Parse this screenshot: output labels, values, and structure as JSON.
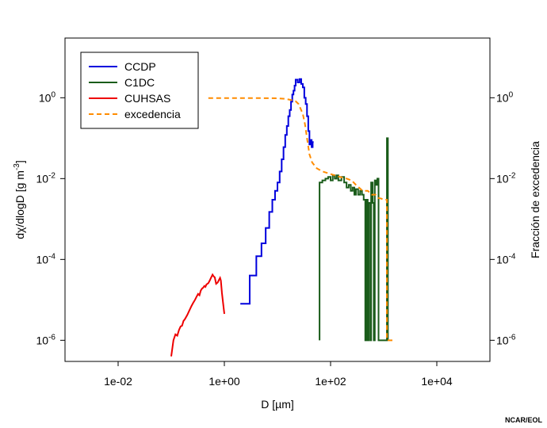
{
  "chart_data": {
    "type": "line",
    "x_scale": "log",
    "y_scale": "log",
    "xlim": [
      0.001,
      100000
    ],
    "ylim": [
      3e-07,
      30
    ],
    "y2lim": [
      3e-07,
      30
    ],
    "xlabel": "D [µm]",
    "ylabel_parts": {
      "main": "dχ/dlogD [g m",
      "sup": "-3",
      "close": "]"
    },
    "ylabel2": "Fracción de excedencia",
    "x_ticks": [
      {
        "v": 0.01,
        "label": "1e-02"
      },
      {
        "v": 1,
        "label": "1e+00"
      },
      {
        "v": 100,
        "label": "1e+02"
      },
      {
        "v": 10000,
        "label": "1e+04"
      }
    ],
    "y_ticks": [
      {
        "v": 1,
        "base": "10",
        "exp": "0"
      },
      {
        "v": 0.01,
        "base": "10",
        "exp": "-2"
      },
      {
        "v": 0.0001,
        "base": "10",
        "exp": "-4"
      },
      {
        "v": 1e-06,
        "base": "10",
        "exp": "-6"
      }
    ],
    "legend": {
      "position": "top-left"
    },
    "series": [
      {
        "name": "CCDP",
        "color": "#0000dd",
        "style": "step",
        "points": [
          [
            2,
            8e-06
          ],
          [
            3,
            8e-06
          ],
          [
            3,
            4e-05
          ],
          [
            4,
            4e-05
          ],
          [
            4,
            0.00012
          ],
          [
            5,
            0.00012
          ],
          [
            5,
            0.00025
          ],
          [
            6,
            0.00025
          ],
          [
            6,
            0.0006
          ],
          [
            7,
            0.0006
          ],
          [
            7,
            0.0015
          ],
          [
            8,
            0.0015
          ],
          [
            8,
            0.003
          ],
          [
            9,
            0.003
          ],
          [
            9,
            0.005
          ],
          [
            10,
            0.005
          ],
          [
            10,
            0.008
          ],
          [
            11,
            0.008
          ],
          [
            11,
            0.015
          ],
          [
            12,
            0.015
          ],
          [
            12,
            0.03
          ],
          [
            13,
            0.03
          ],
          [
            13,
            0.06
          ],
          [
            14,
            0.06
          ],
          [
            14,
            0.12
          ],
          [
            15,
            0.12
          ],
          [
            15,
            0.2
          ],
          [
            16,
            0.2
          ],
          [
            16,
            0.35
          ],
          [
            17,
            0.35
          ],
          [
            17,
            0.5
          ],
          [
            18,
            0.5
          ],
          [
            18,
            0.8
          ],
          [
            19,
            0.8
          ],
          [
            19,
            1.2
          ],
          [
            20,
            1.2
          ],
          [
            20,
            1.5
          ],
          [
            21,
            1.5
          ],
          [
            21,
            2
          ],
          [
            22,
            2
          ],
          [
            22,
            2.8
          ],
          [
            24,
            2.8
          ],
          [
            24,
            2.4
          ],
          [
            26,
            2.4
          ],
          [
            26,
            2.9
          ],
          [
            28,
            2.9
          ],
          [
            28,
            2.2
          ],
          [
            30,
            2.2
          ],
          [
            30,
            1.8
          ],
          [
            32,
            1.8
          ],
          [
            32,
            1.0
          ],
          [
            34,
            1.0
          ],
          [
            34,
            0.7
          ],
          [
            36,
            0.7
          ],
          [
            36,
            0.35
          ],
          [
            38,
            0.35
          ],
          [
            38,
            0.15
          ],
          [
            40,
            0.15
          ],
          [
            40,
            0.07
          ],
          [
            42,
            0.07
          ],
          [
            42,
            0.09
          ],
          [
            44,
            0.09
          ],
          [
            44,
            0.06
          ],
          [
            46,
            0.06
          ],
          [
            46,
            0.08
          ],
          [
            48,
            0.08
          ]
        ]
      },
      {
        "name": "C1DC",
        "color": "#1a5c1a",
        "style": "step",
        "points": [
          [
            62,
            1e-06
          ],
          [
            62,
            0.008
          ],
          [
            70,
            0.008
          ],
          [
            70,
            0.009
          ],
          [
            80,
            0.009
          ],
          [
            80,
            0.01
          ],
          [
            90,
            0.01
          ],
          [
            90,
            0.011
          ],
          [
            100,
            0.011
          ],
          [
            100,
            0.009
          ],
          [
            110,
            0.009
          ],
          [
            110,
            0.012
          ],
          [
            120,
            0.012
          ],
          [
            120,
            0.01
          ],
          [
            130,
            0.01
          ],
          [
            130,
            0.012
          ],
          [
            140,
            0.012
          ],
          [
            140,
            0.009
          ],
          [
            160,
            0.009
          ],
          [
            160,
            0.011
          ],
          [
            180,
            0.011
          ],
          [
            180,
            0.008
          ],
          [
            200,
            0.008
          ],
          [
            200,
            0.006
          ],
          [
            220,
            0.006
          ],
          [
            220,
            0.007
          ],
          [
            240,
            0.007
          ],
          [
            240,
            0.005
          ],
          [
            260,
            0.005
          ],
          [
            260,
            0.006
          ],
          [
            280,
            0.006
          ],
          [
            280,
            0.004
          ],
          [
            300,
            0.004
          ],
          [
            300,
            0.0055
          ],
          [
            330,
            0.0055
          ],
          [
            330,
            0.004
          ],
          [
            360,
            0.004
          ],
          [
            360,
            0.005
          ],
          [
            390,
            0.005
          ],
          [
            390,
            0.004
          ],
          [
            420,
            0.004
          ],
          [
            420,
            0.003
          ],
          [
            450,
            0.003
          ],
          [
            450,
            1e-06
          ],
          [
            470,
            1e-06
          ],
          [
            470,
            0.003
          ],
          [
            500,
            0.003
          ],
          [
            500,
            1e-06
          ],
          [
            520,
            1e-06
          ],
          [
            520,
            0.0025
          ],
          [
            560,
            0.0025
          ],
          [
            560,
            1e-06
          ],
          [
            580,
            1e-06
          ],
          [
            580,
            0.008
          ],
          [
            620,
            0.008
          ],
          [
            620,
            0.0025
          ],
          [
            650,
            0.0025
          ],
          [
            650,
            1e-06
          ],
          [
            680,
            1e-06
          ],
          [
            680,
            0.009
          ],
          [
            720,
            0.009
          ],
          [
            720,
            0.007
          ],
          [
            760,
            0.007
          ],
          [
            760,
            0.01
          ],
          [
            800,
            0.01
          ],
          [
            800,
            1e-06
          ],
          [
            1150,
            1e-06
          ],
          [
            1150,
            0.1
          ],
          [
            1200,
            0.1
          ],
          [
            1200,
            1e-06
          ]
        ]
      },
      {
        "name": "CUHSAS",
        "color": "#ee0000",
        "style": "line",
        "points": [
          [
            0.1,
            4e-07
          ],
          [
            0.11,
            1e-06
          ],
          [
            0.12,
            1.4e-06
          ],
          [
            0.13,
            1.3e-06
          ],
          [
            0.14,
            1.8e-06
          ],
          [
            0.15,
            2.2e-06
          ],
          [
            0.16,
            2.3e-06
          ],
          [
            0.17,
            3e-06
          ],
          [
            0.18,
            3.3e-06
          ],
          [
            0.2,
            4.2e-06
          ],
          [
            0.22,
            5.5e-06
          ],
          [
            0.24,
            7e-06
          ],
          [
            0.26,
            8.5e-06
          ],
          [
            0.28,
            1e-05
          ],
          [
            0.3,
            1.2e-05
          ],
          [
            0.32,
            1.4e-05
          ],
          [
            0.34,
            1.3e-05
          ],
          [
            0.36,
            1.7e-05
          ],
          [
            0.38,
            1.9e-05
          ],
          [
            0.4,
            2e-05
          ],
          [
            0.42,
            2.2e-05
          ],
          [
            0.44,
            2.1e-05
          ],
          [
            0.46,
            2.4e-05
          ],
          [
            0.48,
            2.5e-05
          ],
          [
            0.5,
            2.6e-05
          ],
          [
            0.53,
            3e-05
          ],
          [
            0.56,
            3.5e-05
          ],
          [
            0.6,
            4.2e-05
          ],
          [
            0.63,
            3.8e-05
          ],
          [
            0.66,
            3.6e-05
          ],
          [
            0.7,
            2.5e-05
          ],
          [
            0.75,
            2.7e-05
          ],
          [
            0.8,
            3.2e-05
          ],
          [
            0.83,
            3.5e-05
          ],
          [
            0.86,
            3e-05
          ],
          [
            0.9,
            1.5e-05
          ],
          [
            0.95,
            8e-06
          ],
          [
            1.0,
            4.5e-06
          ]
        ]
      },
      {
        "name": "excedencia",
        "color": "#ff8c00",
        "style": "dashed",
        "points": [
          [
            0.5,
            0.98
          ],
          [
            1,
            0.98
          ],
          [
            2,
            0.98
          ],
          [
            5,
            0.98
          ],
          [
            10,
            0.97
          ],
          [
            14,
            0.94
          ],
          [
            18,
            0.88
          ],
          [
            22,
            0.82
          ],
          [
            25,
            0.7
          ],
          [
            27,
            0.55
          ],
          [
            30,
            0.4
          ],
          [
            33,
            0.22
          ],
          [
            36,
            0.1
          ],
          [
            40,
            0.04
          ],
          [
            45,
            0.025
          ],
          [
            55,
            0.018
          ],
          [
            70,
            0.015
          ],
          [
            100,
            0.013
          ],
          [
            150,
            0.011
          ],
          [
            200,
            0.01
          ],
          [
            250,
            0.009
          ],
          [
            300,
            0.007
          ],
          [
            400,
            0.005
          ],
          [
            500,
            0.005
          ],
          [
            600,
            0.004
          ],
          [
            700,
            0.004
          ],
          [
            800,
            0.0033
          ],
          [
            900,
            0.0032
          ],
          [
            1000,
            0.003
          ],
          [
            1150,
            0.003
          ],
          [
            1150,
            1e-06
          ],
          [
            1600,
            1e-06
          ]
        ]
      }
    ]
  },
  "credit": "NCAR/EOL"
}
